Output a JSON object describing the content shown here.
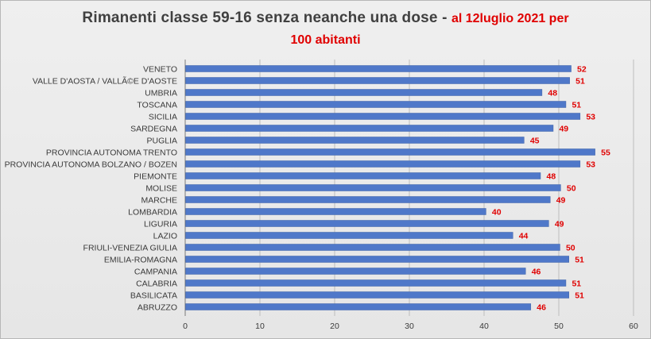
{
  "title": {
    "main": "Rimanenti classe 59-16  senza neanche una dose -",
    "sub1": "al 12luglio 2021 per",
    "sub2": "100 abitanti"
  },
  "colors": {
    "bar": "#4f78c9",
    "value_label": "#e00000",
    "title_text": "#404040"
  },
  "chart_data": {
    "type": "bar",
    "orientation": "horizontal",
    "title": "Rimanenti classe 59-16  senza neanche una dose - al 12luglio 2021 per 100 abitanti",
    "categories": [
      "VENETO",
      "VALLE D'AOSTA / VALLÃ©E D'AOSTE",
      "UMBRIA",
      "TOSCANA",
      "SICILIA",
      "SARDEGNA",
      "PUGLIA",
      "PROVINCIA AUTONOMA TRENTO",
      "PROVINCIA AUTONOMA BOLZANO / BOZEN",
      "PIEMONTE",
      "MOLISE",
      "MARCHE",
      "LOMBARDIA",
      "LIGURIA",
      "LAZIO",
      "FRIULI-VENEZIA GIULIA",
      "EMILIA-ROMAGNA",
      "CAMPANIA",
      "CALABRIA",
      "BASILICATA",
      "ABRUZZO"
    ],
    "values": [
      51.6,
      51.4,
      47.7,
      50.9,
      52.8,
      49.2,
      45.3,
      54.8,
      52.8,
      47.5,
      50.2,
      48.8,
      40.2,
      48.6,
      43.8,
      50.1,
      51.3,
      45.5,
      50.9,
      51.3,
      46.2
    ],
    "value_labels": [
      "52",
      "51",
      "48",
      "51",
      "53",
      "49",
      "45",
      "55",
      "53",
      "48",
      "50",
      "49",
      "40",
      "49",
      "44",
      "50",
      "51",
      "46",
      "51",
      "51",
      "46"
    ],
    "xlim": [
      0,
      60
    ],
    "x_ticks": [
      "0",
      "10",
      "20",
      "30",
      "40",
      "50",
      "60"
    ],
    "grid": true
  }
}
